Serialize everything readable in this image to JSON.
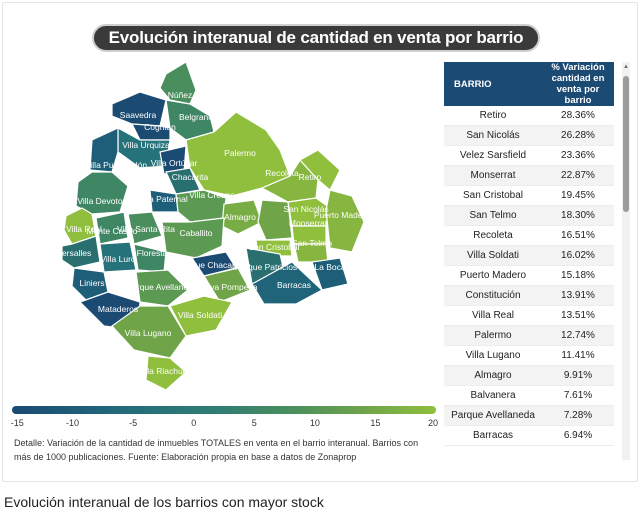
{
  "title": "Evolución interanual de cantidad en venta por barrio",
  "table": {
    "headers": [
      "BARRIO",
      "% Variación cantidad en venta por barrio"
    ],
    "rows": [
      {
        "barrio": "Retiro",
        "valor": "28.36%"
      },
      {
        "barrio": "San Nicolás",
        "valor": "26.28%"
      },
      {
        "barrio": "Velez Sarsfield",
        "valor": "23.36%"
      },
      {
        "barrio": "Monserrat",
        "valor": "22.87%"
      },
      {
        "barrio": "San Cristobal",
        "valor": "19.45%"
      },
      {
        "barrio": "San Telmo",
        "valor": "18.30%"
      },
      {
        "barrio": "Recoleta",
        "valor": "16.51%"
      },
      {
        "barrio": "Villa Soldati",
        "valor": "16.02%"
      },
      {
        "barrio": "Puerto Madero",
        "valor": "15.18%"
      },
      {
        "barrio": "Constitución",
        "valor": "13.91%"
      },
      {
        "barrio": "Villa Real",
        "valor": "13.51%"
      },
      {
        "barrio": "Palermo",
        "valor": "12.74%"
      },
      {
        "barrio": "Villa Lugano",
        "valor": "11.41%"
      },
      {
        "barrio": "Almagro",
        "valor": "9.91%"
      },
      {
        "barrio": "Balvanera",
        "valor": "7.61%"
      },
      {
        "barrio": "Parque Avellaneda",
        "valor": "7.28%"
      },
      {
        "barrio": "Barracas",
        "valor": "6.94%"
      }
    ]
  },
  "legend": {
    "ticks": [
      "-15",
      "-10",
      "-5",
      "0",
      "5",
      "10",
      "15",
      "20"
    ],
    "range": [
      -15,
      20
    ],
    "colors": [
      "#1b4a73",
      "#26727a",
      "#4a8e5d",
      "#8fbf3c"
    ]
  },
  "note": "Detalle: Variación de la cantidad de inmuebles TOTALES en venta en el barrio interanual. Barrios con más de 1000 publicaciones. Fuente: Elaboración propia en base a datos de Zonaprop",
  "caption": "Evolución interanual de los barrios con mayor stock",
  "map_labels": {
    "nunez": "Núñez",
    "saavedra": "Saavedra",
    "belgrano": "Belgrano",
    "coghlan": "Coghlan",
    "villa_urquiza": "Villa Urquiza",
    "villa_pueyrredon": "Villa Pueyrredón",
    "villa_ortuzar": "Villa Ortúzar",
    "chacarita": "Chacarita",
    "palermo": "Palermo",
    "recoleta": "Recoleta",
    "retiro": "Retiro",
    "villa_devoto": "Villa Devoto",
    "paternal": "La Paternal",
    "villa_crespo": "Villa Crespo",
    "almagro": "Almagro",
    "san_nicolas": "San Nicolás",
    "monserrat": "Monserrat",
    "puerto_madero": "Puerto Madero",
    "villa_real": "Villa Real",
    "monte_castro": "Monte Castro",
    "villa_santa_rita": "Villa Santa Rita",
    "caballito": "Caballito",
    "san_cristobal": "San Cristobal",
    "san_telmo": "San Telmo",
    "versalles": "Versalles",
    "villa_luro": "Villa Luro",
    "floresta": "Floresta",
    "parque_chacabuco": "Parque Chacabuco",
    "parque_patricios": "Parque Patricios",
    "la_boca": "La Boca",
    "liniers": "Liniers",
    "parque_avellaneda": "Parque Avellaneda",
    "nueva_pompeya": "Nueva Pompeya",
    "barracas": "Barracas",
    "mataderos": "Mataderos",
    "villa_soldati": "Villa Soldati",
    "villa_lugano": "Villa Lugano",
    "villa_riachuelo": "Villa Riachuelo"
  }
}
